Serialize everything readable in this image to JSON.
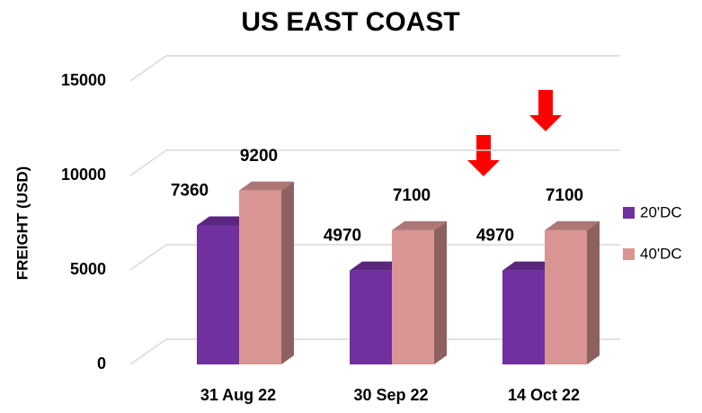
{
  "chart_data": {
    "type": "bar",
    "title": "US EAST COAST",
    "y_label": "FREIGHT (USD)",
    "categories": [
      "31 Aug 22",
      "30 Sep 22",
      "14 Oct 22"
    ],
    "series": [
      {
        "name": "20'DC",
        "color": "#7030a0",
        "values": [
          7360,
          4970,
          4970
        ]
      },
      {
        "name": "40'DC",
        "color": "#d99594",
        "values": [
          9200,
          7100,
          7100
        ]
      }
    ],
    "ylim": [
      0,
      15000
    ],
    "yticks": [
      0,
      5000,
      10000,
      15000
    ],
    "grid": true,
    "legend": "right"
  }
}
